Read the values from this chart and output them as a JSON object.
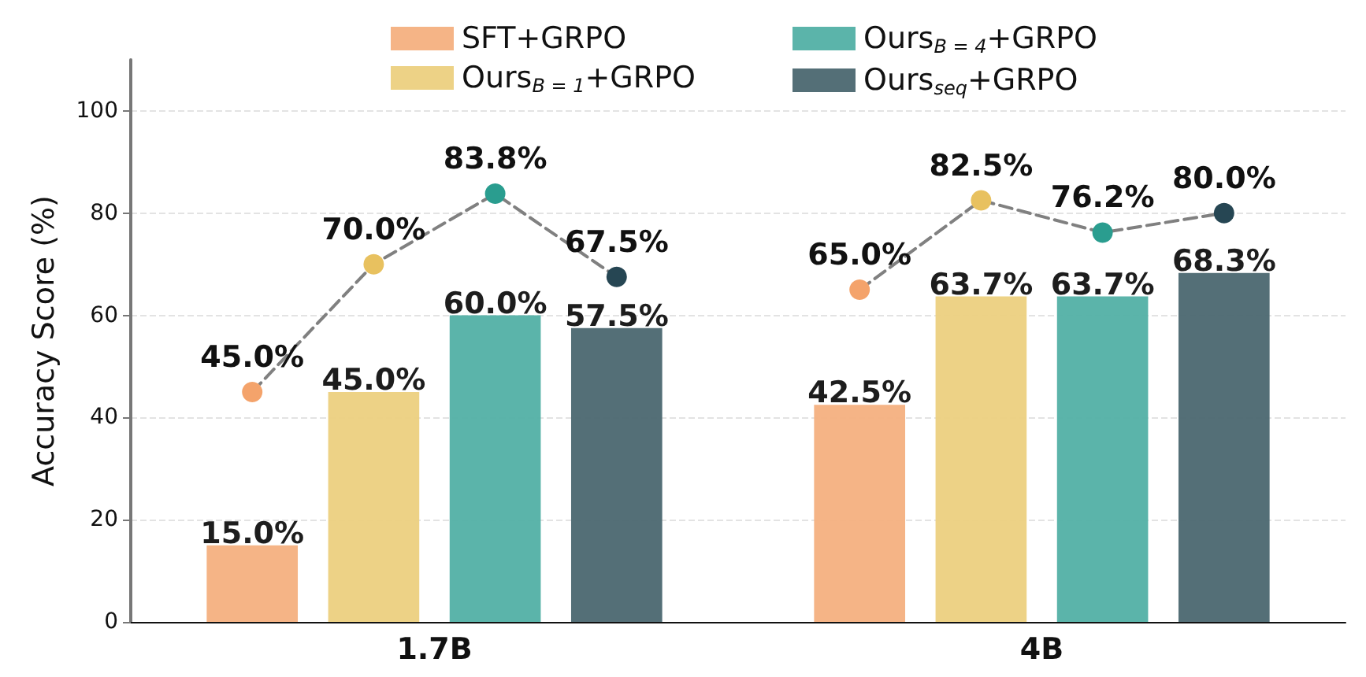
{
  "chart_data": {
    "type": "bar",
    "ylabel": "Accuracy Score (%)",
    "categories": [
      "1.7B",
      "4B"
    ],
    "series": [
      {
        "name": "SFT+GRPO",
        "color": "#f4b07f",
        "values": [
          15.0,
          42.5
        ],
        "value_labels": [
          "15.0%",
          "42.5%"
        ]
      },
      {
        "name": "Ours$_{B = 1}$+GRPO",
        "color": "#ecd07f",
        "values": [
          45.0,
          63.7
        ],
        "value_labels": [
          "45.0%",
          "63.7%"
        ]
      },
      {
        "name": "Ours$_{B = 4}$+GRPO",
        "color": "#52b0a5",
        "values": [
          60.0,
          63.7
        ],
        "value_labels": [
          "60.0%",
          "63.7%"
        ]
      },
      {
        "name": "Ours$_{seq}$+GRPO",
        "color": "#4b6770",
        "values": [
          57.5,
          68.3
        ],
        "value_labels": [
          "57.5%",
          "68.3%"
        ]
      },
      {
        "type": "scatter",
        "color": "#f4a36b",
        "values": [
          45.0,
          65.0
        ],
        "value_labels": [
          "45.0%",
          "65.0%"
        ]
      },
      {
        "type": "scatter",
        "color": "#e8c15f",
        "values": [
          70.0,
          82.5
        ],
        "value_labels": [
          "70.0%",
          "82.5%"
        ]
      },
      {
        "type": "scatter",
        "color": "#2a9d8f",
        "values": [
          83.8,
          76.2
        ],
        "value_labels": [
          "83.8%",
          "76.2%"
        ]
      },
      {
        "type": "scatter",
        "color": "#264653",
        "values": [
          67.5,
          80.0
        ],
        "value_labels": [
          "67.5%",
          "80.0%"
        ]
      }
    ],
    "marker": "circle",
    "line_style": "dashed",
    "ylim": [
      0,
      110
    ],
    "yticks": [
      0,
      20,
      40,
      60,
      80,
      100
    ],
    "grid": "y",
    "legend": "top"
  }
}
